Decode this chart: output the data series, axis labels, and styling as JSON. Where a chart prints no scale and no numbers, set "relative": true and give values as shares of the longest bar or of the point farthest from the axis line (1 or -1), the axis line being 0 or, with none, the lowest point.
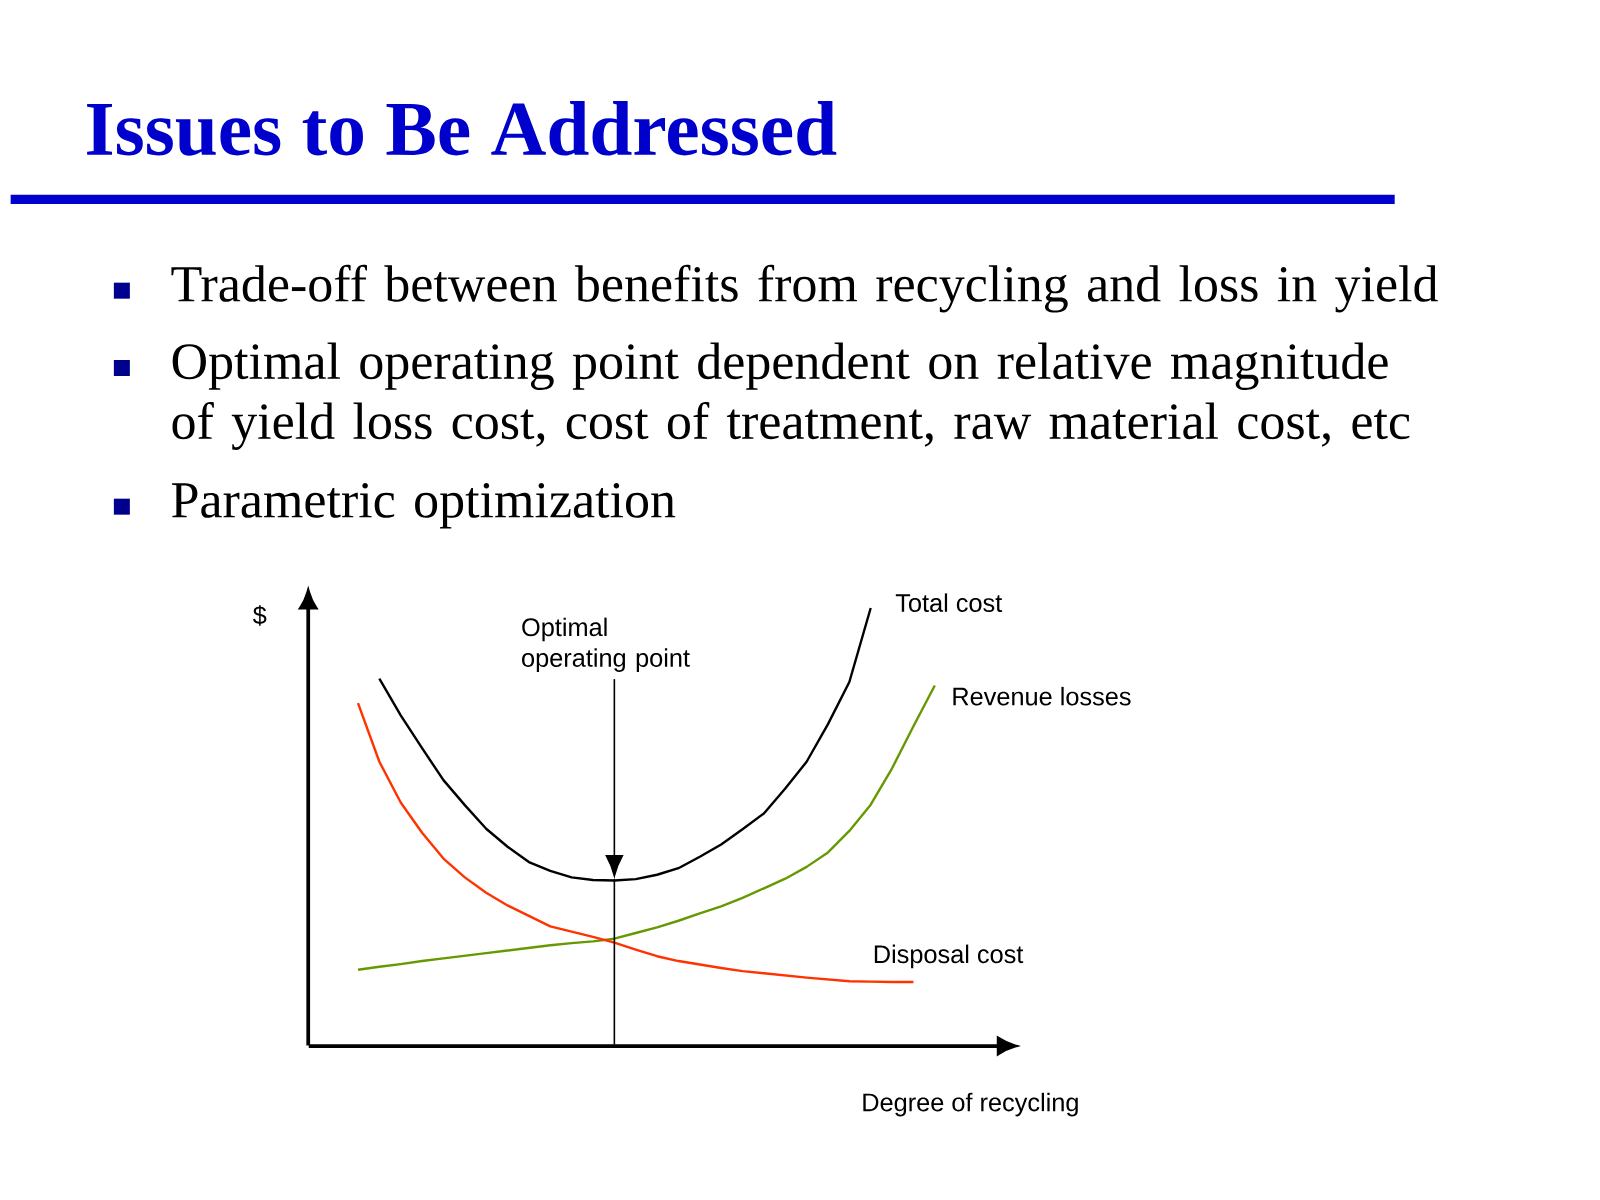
{
  "chart_data": {
    "type": "line",
    "title": "Issues to Be Addressed",
    "annotations": [
      "Trade-off between benefits from recycling and loss in yield",
      "Optimal operating point dependent on relative magnitude of yield loss cost, cost of treatment, raw material cost, etc",
      "Parametric optimization",
      "Optimal operating point"
    ],
    "xlabel": "Degree of recycling",
    "ylabel": "$",
    "relative": true,
    "categories": [
      null,
      null,
      null,
      null,
      null,
      null,
      null,
      null,
      null,
      null,
      null,
      null,
      null,
      null,
      null,
      null,
      null,
      null,
      null,
      null,
      null,
      null,
      null,
      null,
      null,
      null,
      null,
      null
    ],
    "series": [
      {
        "name": "Total cost",
        "color": "#000000",
        "values": [
          null,
          0.839,
          0.755,
          0.68,
          0.607,
          0.55,
          0.496,
          0.455,
          0.42,
          0.4,
          0.385,
          0.379,
          0.378,
          0.381,
          0.391,
          0.406,
          0.432,
          0.46,
          0.495,
          0.531,
          0.588,
          0.649,
          0.735,
          0.831,
          1,
          null,
          null,
          null
        ]
      },
      {
        "name": "Revenue losses",
        "color": "#669900",
        "values": [
          0.174,
          0.181,
          0.187,
          0.194,
          0.2,
          0.206,
          0.212,
          0.218,
          0.224,
          0.23,
          0.235,
          0.239,
          0.245,
          0.258,
          0.271,
          0.286,
          0.303,
          0.319,
          0.338,
          0.36,
          0.382,
          0.409,
          0.442,
          0.491,
          0.551,
          0.634,
          0.73,
          0.823
        ]
      },
      {
        "name": "Disposal cost",
        "color": "#ff3300",
        "values": [
          0.783,
          0.649,
          0.556,
          0.487,
          0.428,
          0.385,
          0.35,
          0.321,
          0.297,
          0.273,
          0.261,
          0.249,
          0.236,
          0.22,
          0.205,
          0.194,
          0.186,
          0.178,
          0.171,
          0.166,
          0.161,
          0.156,
          0.152,
          0.148,
          0.147,
          0.146,
          0.146,
          null
        ]
      }
    ]
  }
}
